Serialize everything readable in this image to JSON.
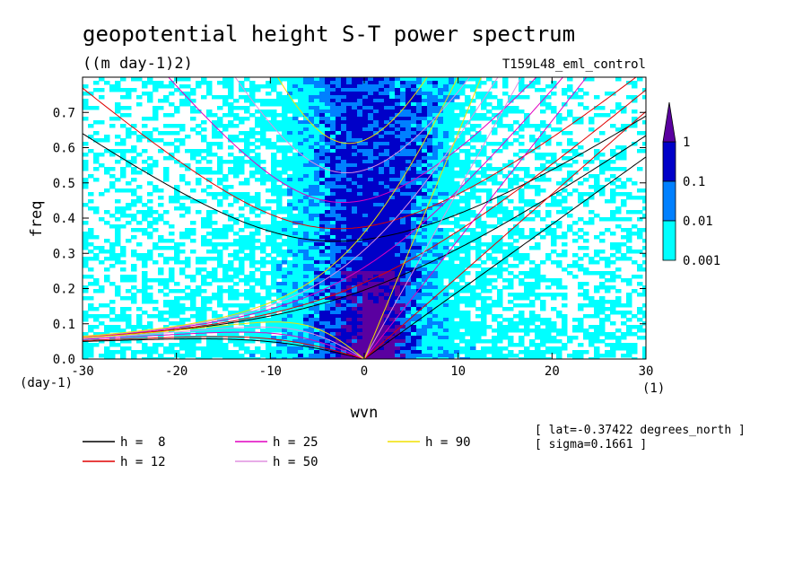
{
  "chart_data": {
    "type": "heatmap",
    "title": "geopotential height S-T power spectrum",
    "subtitle": "((m day-1)2)",
    "run_label": "T159L48_eml_control",
    "xlabel": "wvn",
    "ylabel": "freq",
    "x_unit": "(1)",
    "y_unit": "(day-1)",
    "xlim": [
      -30,
      30
    ],
    "ylim": [
      0,
      0.8
    ],
    "x_ticks": [
      "-30",
      "-20",
      "-10",
      "0",
      "10",
      "20",
      "30"
    ],
    "y_ticks": [
      "0.0",
      "0.1",
      "0.2",
      "0.3",
      "0.4",
      "0.5",
      "0.6",
      "0.7"
    ],
    "colorbar": {
      "levels": [
        "0.001",
        "0.01",
        "0.1",
        "1"
      ],
      "colors": [
        "#00ffff",
        "#0080ff",
        "#0000c8",
        "#5a00a0"
      ]
    },
    "dispersion_curves": [
      {
        "name": "h =  8",
        "h": 8,
        "color": "#000000"
      },
      {
        "name": "h = 12",
        "h": 12,
        "color": "#e00000"
      },
      {
        "name": "h = 25",
        "h": 25,
        "color": "#e000c0"
      },
      {
        "name": "h = 50",
        "h": 50,
        "color": "#e090e0"
      },
      {
        "name": "h = 90",
        "h": 90,
        "color": "#f0e000"
      }
    ],
    "annotations": [
      "[ lat=-0.37422 degrees_north ]",
      "[ sigma=0.1661 ]"
    ],
    "grid": false
  }
}
